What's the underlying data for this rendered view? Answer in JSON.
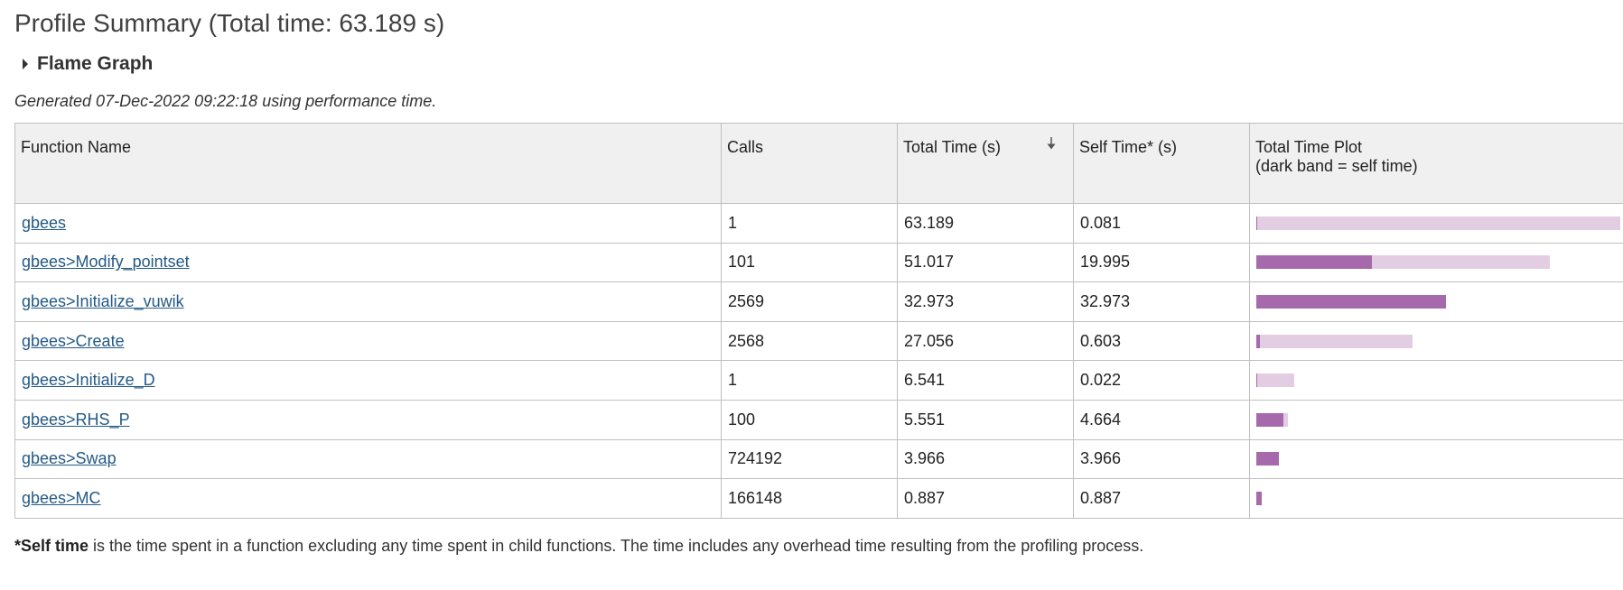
{
  "page": {
    "title": "Profile Summary (Total time: 63.189 s)",
    "flame_graph_label": "Flame Graph",
    "generated": "Generated 07-Dec-2022 09:22:18 using performance time."
  },
  "table": {
    "headers": {
      "function_name": "Function Name",
      "calls": "Calls",
      "total_time": "Total Time (s)",
      "self_time": "Self Time* (s)",
      "plot_line1": "Total Time Plot",
      "plot_line2": "(dark band = self time)"
    },
    "max_total": 63.189,
    "rows": [
      {
        "name": "gbees",
        "calls": "1",
        "total": "63.189",
        "self": "0.081"
      },
      {
        "name": "gbees>Modify_pointset",
        "calls": "101",
        "total": "51.017",
        "self": "19.995"
      },
      {
        "name": "gbees>Initialize_vuwik",
        "calls": "2569",
        "total": "32.973",
        "self": "32.973"
      },
      {
        "name": "gbees>Create",
        "calls": "2568",
        "total": "27.056",
        "self": "0.603"
      },
      {
        "name": "gbees>Initialize_D",
        "calls": "1",
        "total": "6.541",
        "self": "0.022"
      },
      {
        "name": "gbees>RHS_P",
        "calls": "100",
        "total": "5.551",
        "self": "4.664"
      },
      {
        "name": "gbees>Swap",
        "calls": "724192",
        "total": "3.966",
        "self": "3.966"
      },
      {
        "name": "gbees>MC",
        "calls": "166148",
        "total": "0.887",
        "self": "0.887"
      }
    ]
  },
  "footnote": {
    "bold": "*Self time",
    "text": " is the time spent in a function excluding any time spent in child functions. The time includes any overhead time resulting from the profiling process."
  },
  "colors": {
    "total_bar": "#e3cde3",
    "self_bar": "#a669ab",
    "link": "#245a86"
  }
}
